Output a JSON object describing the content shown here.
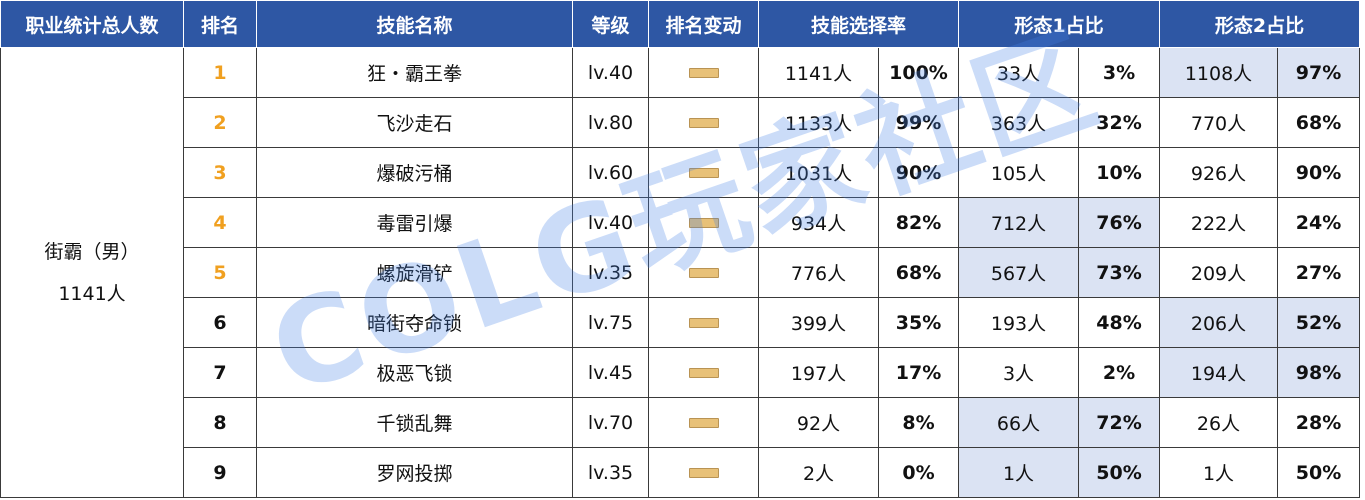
{
  "header": {
    "total": "职业统计总人数",
    "rank": "排名",
    "skill": "技能名称",
    "level": "等级",
    "change": "排名变动",
    "pick_rate": "技能选择率",
    "form1": "形态1占比",
    "form2": "形态2占比"
  },
  "total_cell": {
    "line1": "街霸（男）",
    "line2": "1141人"
  },
  "rows": [
    {
      "rank": "1",
      "skill": "狂・霸王拳",
      "level": "lv.40",
      "count": "1141人",
      "rate": "100%",
      "f1_count": "33人",
      "f1_rate": "3%",
      "f2_count": "1108人",
      "f2_rate": "97%"
    },
    {
      "rank": "2",
      "skill": "飞沙走石",
      "level": "lv.80",
      "count": "1133人",
      "rate": "99%",
      "f1_count": "363人",
      "f1_rate": "32%",
      "f2_count": "770人",
      "f2_rate": "68%"
    },
    {
      "rank": "3",
      "skill": "爆破污桶",
      "level": "lv.60",
      "count": "1031人",
      "rate": "90%",
      "f1_count": "105人",
      "f1_rate": "10%",
      "f2_count": "926人",
      "f2_rate": "90%"
    },
    {
      "rank": "4",
      "skill": "毒雷引爆",
      "level": "lv.40",
      "count": "934人",
      "rate": "82%",
      "f1_count": "712人",
      "f1_rate": "76%",
      "f2_count": "222人",
      "f2_rate": "24%"
    },
    {
      "rank": "5",
      "skill": "螺旋滑铲",
      "level": "lv.35",
      "count": "776人",
      "rate": "68%",
      "f1_count": "567人",
      "f1_rate": "73%",
      "f2_count": "209人",
      "f2_rate": "27%"
    },
    {
      "rank": "6",
      "skill": "暗街夺命锁",
      "level": "lv.75",
      "count": "399人",
      "rate": "35%",
      "f1_count": "193人",
      "f1_rate": "48%",
      "f2_count": "206人",
      "f2_rate": "52%"
    },
    {
      "rank": "7",
      "skill": "极恶飞锁",
      "level": "lv.45",
      "count": "197人",
      "rate": "17%",
      "f1_count": "3人",
      "f1_rate": "2%",
      "f2_count": "194人",
      "f2_rate": "98%"
    },
    {
      "rank": "8",
      "skill": "千锁乱舞",
      "level": "lv.70",
      "count": "92人",
      "rate": "8%",
      "f1_count": "66人",
      "f1_rate": "72%",
      "f2_count": "26人",
      "f2_rate": "28%"
    },
    {
      "rank": "9",
      "skill": "罗网投掷",
      "level": "lv.35",
      "count": "2人",
      "rate": "0%",
      "f1_count": "1人",
      "f1_rate": "50%",
      "f2_count": "1人",
      "f2_rate": "50%"
    }
  ],
  "watermark": "COLG玩家社区",
  "colors": {
    "header_bg": "#2e57a4",
    "highlight": "#dbe3f3",
    "top_rank": "#f0a020",
    "dash": "#e8c178"
  },
  "icons": {
    "change": "no-change-dash-icon"
  }
}
